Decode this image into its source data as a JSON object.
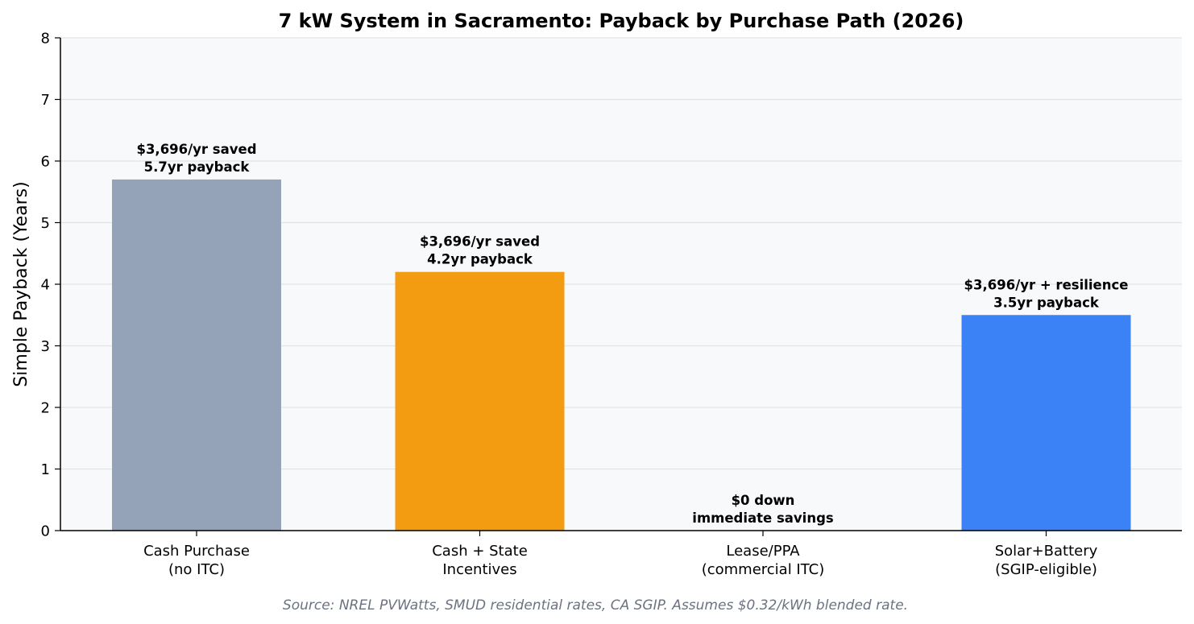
{
  "chart_data": {
    "type": "bar",
    "title": "7 kW System in Sacramento: Payback by Purchase Path (2026)",
    "xlabel": "",
    "ylabel": "Simple Payback (Years)",
    "ylim": [
      0,
      8
    ],
    "yticks": [
      "0",
      "1",
      "2",
      "3",
      "4",
      "5",
      "6",
      "7",
      "8"
    ],
    "grid": "horizontal",
    "categories": [
      [
        "Cash Purchase",
        "(no ITC)"
      ],
      [
        "Cash + State",
        "Incentives"
      ],
      [
        "Lease/PPA",
        "(commercial ITC)"
      ],
      [
        "Solar+Battery",
        "(SGIP-eligible)"
      ]
    ],
    "values": [
      5.7,
      4.2,
      0,
      3.5
    ],
    "colors": [
      "#94a3b8",
      "#f39c12",
      "#f39c12",
      "#3b82f6"
    ],
    "annotations": [
      [
        "$3,696/yr saved",
        "5.7yr payback"
      ],
      [
        "$3,696/yr saved",
        "4.2yr payback"
      ],
      [
        "$0 down",
        "immediate savings"
      ],
      [
        "$3,696/yr + resilience",
        "3.5yr payback"
      ]
    ],
    "source": "Source: NREL PVWatts, SMUD residential rates, CA SGIP. Assumes $0.32/kWh blended rate."
  }
}
